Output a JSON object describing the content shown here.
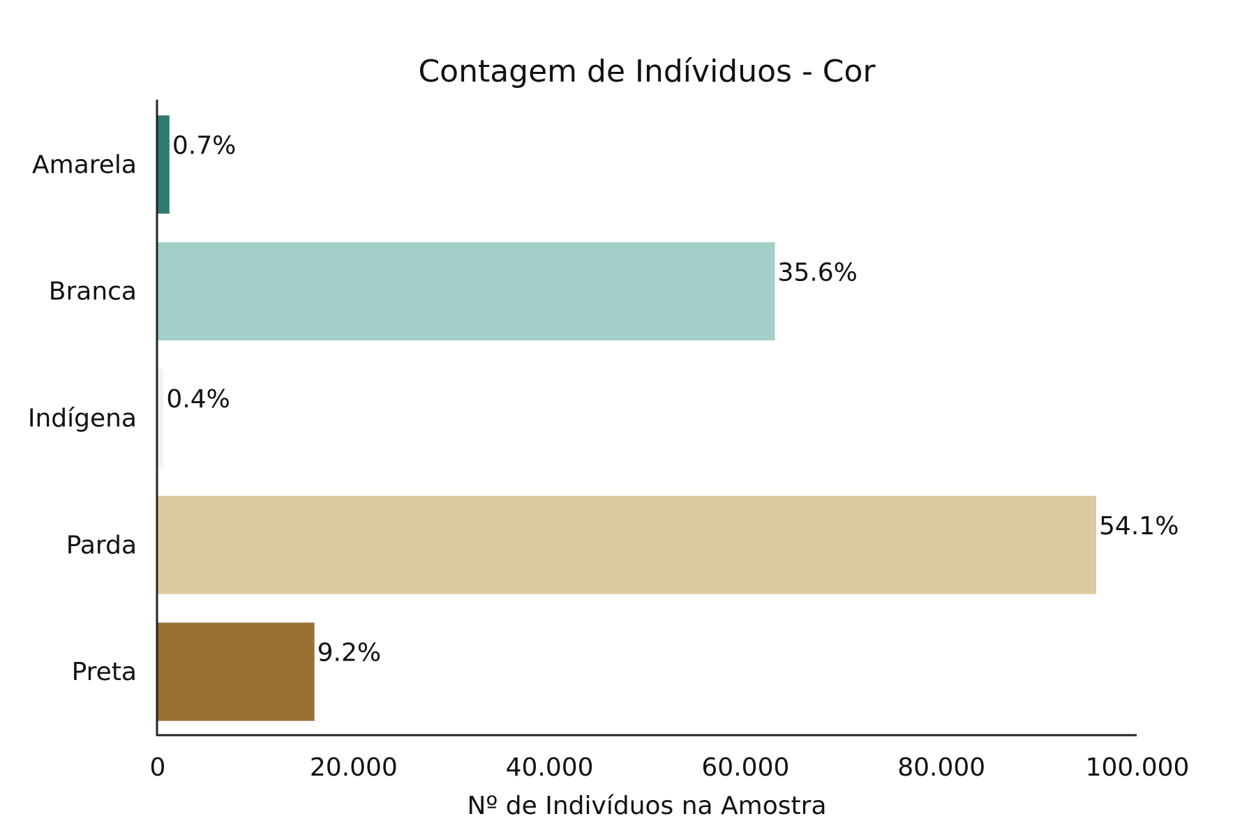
{
  "chart_data": {
    "type": "bar",
    "orientation": "horizontal",
    "title": "Contagem de Indíviduos - Cor",
    "xlabel": "Nº de Indivíduos na Amostra",
    "ylabel": "",
    "categories": [
      "Amarela",
      "Branca",
      "Indígena",
      "Parda",
      "Preta"
    ],
    "values": [
      1200,
      63000,
      600,
      95800,
      16000
    ],
    "data_labels": [
      "0.7%",
      "35.6%",
      "0.4%",
      "54.1%",
      "9.2%"
    ],
    "colors": [
      "#2e7a70",
      "#a3cfc9",
      "#f2f2f2",
      "#dccba0",
      "#9a6f33"
    ],
    "xlim": [
      0,
      100000
    ],
    "x_ticks": [
      0,
      20000,
      40000,
      60000,
      80000,
      100000
    ],
    "x_tick_labels": [
      "0",
      "20.000",
      "40.000",
      "60.000",
      "80.000",
      "100.000"
    ],
    "grid": false,
    "legend": "none"
  }
}
